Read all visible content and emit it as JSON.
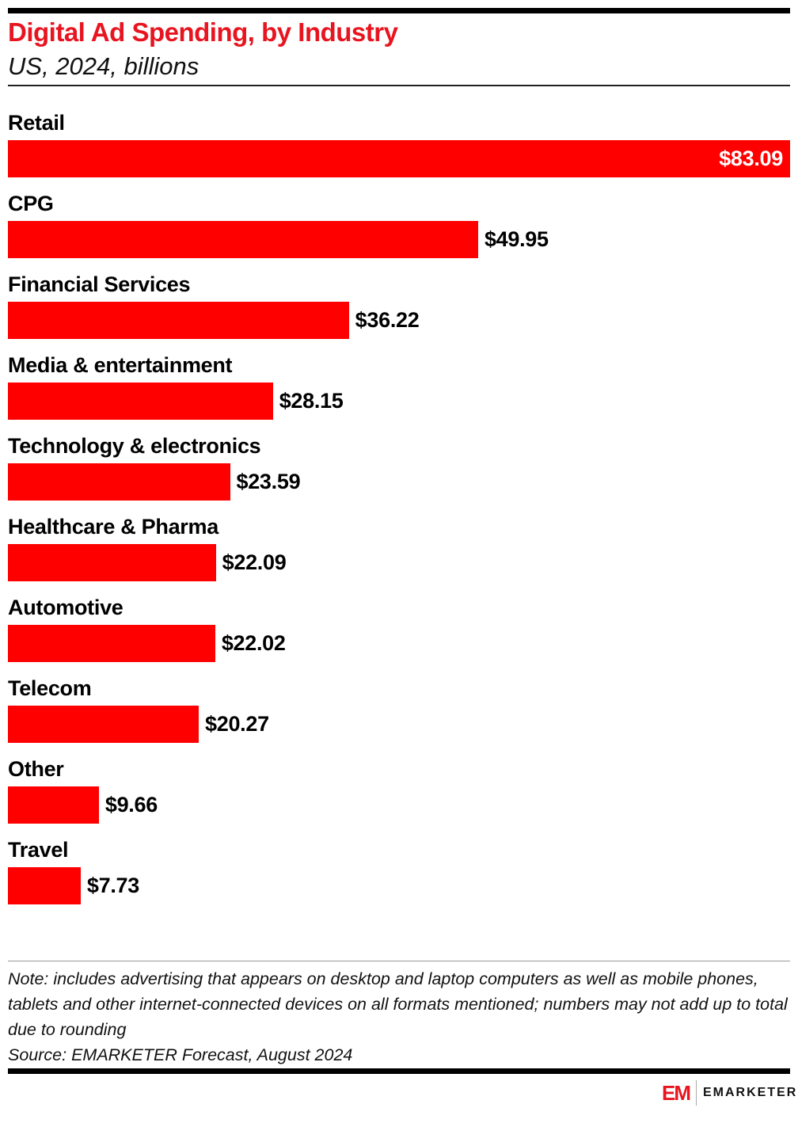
{
  "chart_data": {
    "type": "bar",
    "orientation": "horizontal",
    "title": "Digital Ad Spending, by Industry",
    "subtitle": "US, 2024, billions",
    "categories": [
      "Retail",
      "CPG",
      "Financial Services",
      "Media & entertainment",
      "Technology & electronics",
      "Healthcare & Pharma",
      "Automotive",
      "Telecom",
      "Other",
      "Travel"
    ],
    "values": [
      83.09,
      49.95,
      36.22,
      28.15,
      23.59,
      22.09,
      22.02,
      20.27,
      9.66,
      7.73
    ],
    "data_labels": [
      "$83.09",
      "$49.95",
      "$36.22",
      "$28.15",
      "$23.59",
      "$22.09",
      "$22.02",
      "$20.27",
      "$9.66",
      "$7.73"
    ],
    "xlim": [
      0,
      83.09
    ],
    "grid": false,
    "bar_color": "#ff0000"
  },
  "note": "Note: includes advertising that appears on desktop and laptop computers as well as mobile phones, tablets and other internet-connected devices on all formats mentioned; numbers may not add up to total due to rounding",
  "source": "Source: EMARKETER Forecast, August 2024",
  "logo": {
    "mark": "EM",
    "word": "EMARKETER",
    "color": "#e8141f"
  }
}
